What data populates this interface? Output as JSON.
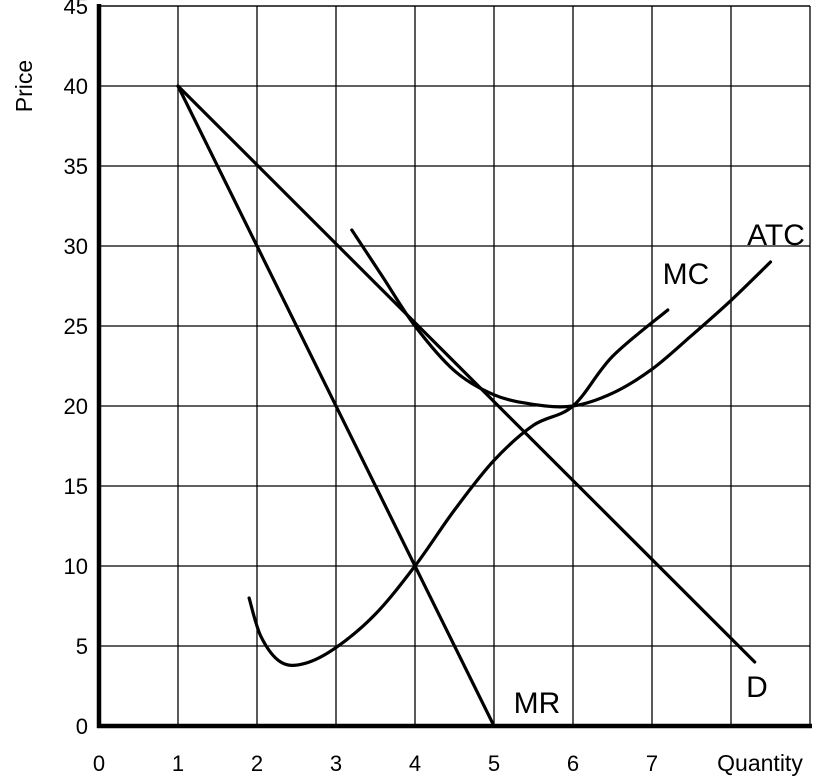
{
  "chart_data": {
    "type": "line",
    "title": "",
    "xlabel": "Quantity",
    "ylabel": "Price",
    "xlim": [
      0,
      9
    ],
    "ylim": [
      0,
      45
    ],
    "grid": true,
    "x_ticks": [
      "0",
      "1",
      "2",
      "3",
      "4",
      "5",
      "6",
      "7"
    ],
    "y_ticks": [
      "0",
      "5",
      "10",
      "15",
      "20",
      "25",
      "30",
      "35",
      "40",
      "45"
    ],
    "series": [
      {
        "name": "D",
        "points": [
          [
            1,
            40
          ],
          [
            8.3,
            4
          ]
        ]
      },
      {
        "name": "MR",
        "points": [
          [
            1,
            40
          ],
          [
            5,
            0
          ]
        ]
      },
      {
        "name": "MC",
        "points": [
          [
            1.9,
            8
          ],
          [
            2.05,
            5.6
          ],
          [
            2.3,
            4
          ],
          [
            2.6,
            3.9
          ],
          [
            3.0,
            4.9
          ],
          [
            3.5,
            7
          ],
          [
            4,
            10
          ],
          [
            4.5,
            13.5
          ],
          [
            5,
            16.6
          ],
          [
            5.5,
            18.8
          ],
          [
            6,
            20
          ],
          [
            6.5,
            23.1
          ],
          [
            7.2,
            26
          ]
        ]
      },
      {
        "name": "ATC",
        "points": [
          [
            3.2,
            31
          ],
          [
            3.6,
            28
          ],
          [
            4,
            25
          ],
          [
            4.5,
            22.2
          ],
          [
            5,
            20.7
          ],
          [
            5.5,
            20.1
          ],
          [
            6,
            20
          ],
          [
            6.5,
            20.8
          ],
          [
            7,
            22.3
          ],
          [
            7.5,
            24.4
          ],
          [
            8,
            26.6
          ],
          [
            8.5,
            29
          ]
        ]
      }
    ]
  }
}
